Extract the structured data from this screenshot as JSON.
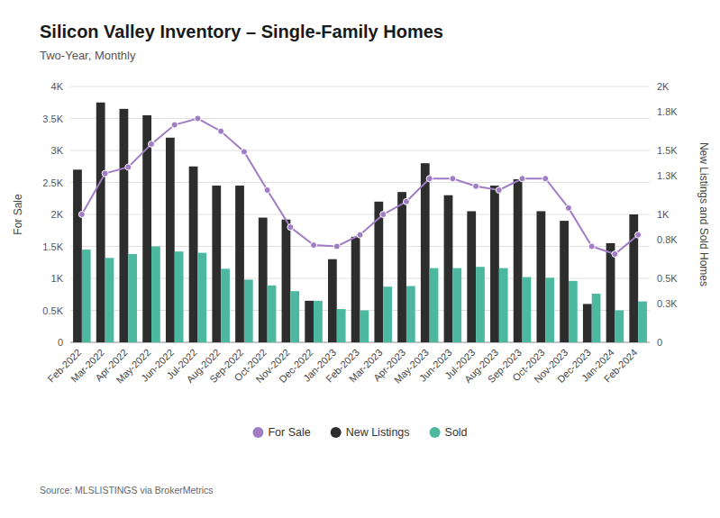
{
  "chart_data": {
    "type": "bar",
    "title": "Silicon Valley Inventory – Single-Family Homes",
    "subtitle": "Two-Year, Monthly",
    "source": "Source: MLSLISTINGS via BrokerMetrics",
    "ylabel": "For Sale",
    "y2label": "New Listings and Sold Homes",
    "categories": [
      "Feb-2022",
      "Mar-2022",
      "Apr-2022",
      "May-2022",
      "Jun-2022",
      "Jul-2022",
      "Aug-2022",
      "Sep-2022",
      "Oct-2022",
      "Nov-2022",
      "Dec-2022",
      "Jan-2023",
      "Feb-2023",
      "Mar-2023",
      "Apr-2023",
      "May-2023",
      "Jun-2023",
      "Jul-2023",
      "Aug-2023",
      "Sep-2023",
      "Oct-2023",
      "Nov-2023",
      "Dec-2023",
      "Jan-2024",
      "Feb-2024"
    ],
    "series": [
      {
        "name": "For Sale",
        "type": "line",
        "axis": "y2",
        "color": "#a07cc5",
        "marker": "circle",
        "line_style": "solid",
        "values": [
          1000,
          1320,
          1370,
          1550,
          1700,
          1750,
          1650,
          1490,
          1190,
          900,
          760,
          750,
          840,
          1000,
          1100,
          1280,
          1280,
          1220,
          1190,
          1280,
          1280,
          1050,
          750,
          690,
          840
        ]
      },
      {
        "name": "New Listings",
        "type": "bar",
        "color": "#2d2d2d",
        "values": [
          2700,
          3750,
          3650,
          3550,
          3200,
          2750,
          2450,
          2450,
          1950,
          1920,
          650,
          1300,
          1650,
          2200,
          2350,
          2800,
          2300,
          2050,
          2450,
          2550,
          2050,
          1900,
          600,
          1550,
          2000
        ]
      },
      {
        "name": "Sold",
        "type": "bar",
        "color": "#4db8a0",
        "values": [
          1450,
          1320,
          1380,
          1500,
          1420,
          1400,
          1150,
          980,
          890,
          800,
          650,
          520,
          500,
          870,
          880,
          1160,
          1160,
          1180,
          1160,
          1020,
          1010,
          960,
          760,
          500,
          640
        ]
      }
    ],
    "ylim": [
      0,
      4000
    ],
    "yticks": [
      0,
      {
        "value": 500,
        "label": "0.5K"
      },
      {
        "value": 1000,
        "label": "1K"
      },
      {
        "value": 1500,
        "label": "1.5K"
      },
      {
        "value": 2000,
        "label": "2K"
      },
      {
        "value": 2500,
        "label": "2.5K"
      },
      {
        "value": 3000,
        "label": "3K"
      },
      {
        "value": 3500,
        "label": "3.5K"
      },
      {
        "value": 4000,
        "label": "4K"
      }
    ],
    "y2lim": [
      0,
      2000
    ],
    "y2ticks": [
      0,
      {
        "value": 300,
        "label": "0.3K"
      },
      {
        "value": 500,
        "label": "0.5K"
      },
      {
        "value": 800,
        "label": "0.8K"
      },
      {
        "value": 1000,
        "label": "1K"
      },
      {
        "value": 1300,
        "label": "1.3K"
      },
      {
        "value": 1500,
        "label": "1.5K"
      },
      {
        "value": 1800,
        "label": "1.8K"
      },
      {
        "value": 2000,
        "label": "2K"
      }
    ],
    "grid": true,
    "legend": "bottom"
  }
}
